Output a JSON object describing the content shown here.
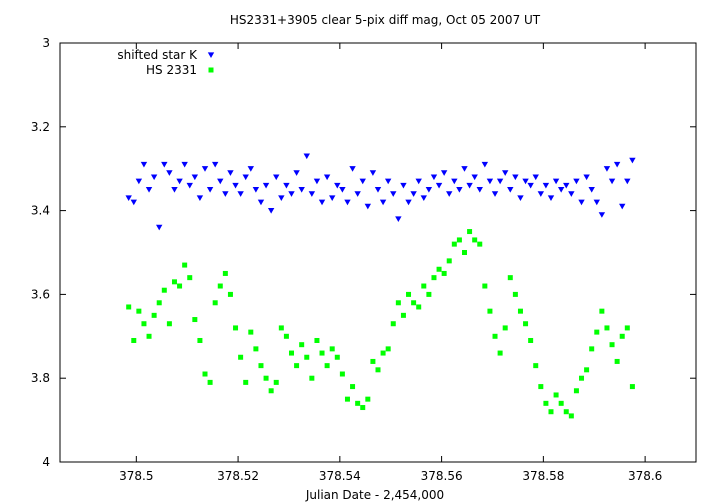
{
  "chart_data": {
    "type": "scatter",
    "title": "HS2331+3905 clear 5-pix diff mag, Oct 05 2007 UT",
    "xlabel": "Julian Date - 2,454,000",
    "ylabel": "",
    "xlim": [
      378.485,
      378.61
    ],
    "ylim": [
      4,
      3
    ],
    "y_inverted": true,
    "grid": false,
    "legend_position": "top-left",
    "x_ticks": [
      378.5,
      378.52,
      378.54,
      378.56,
      378.58,
      378.6
    ],
    "x_tick_labels": [
      "378.5",
      "378.52",
      "378.54",
      "378.56",
      "378.58",
      "378.6"
    ],
    "y_ticks": [
      3,
      3.2,
      3.4,
      3.6,
      3.8,
      4
    ],
    "y_tick_labels": [
      "3",
      "3.2",
      "3.4",
      "3.6",
      "3.8",
      "4"
    ],
    "series": [
      {
        "name": "shifted star K",
        "color": "#0000ff",
        "marker": "triangle-down",
        "points": [
          [
            378.4985,
            3.37
          ],
          [
            378.4995,
            3.38
          ],
          [
            378.5005,
            3.33
          ],
          [
            378.5015,
            3.29
          ],
          [
            378.5025,
            3.35
          ],
          [
            378.5035,
            3.32
          ],
          [
            378.5045,
            3.44
          ],
          [
            378.5055,
            3.29
          ],
          [
            378.5065,
            3.31
          ],
          [
            378.5075,
            3.35
          ],
          [
            378.5085,
            3.33
          ],
          [
            378.5095,
            3.29
          ],
          [
            378.5105,
            3.34
          ],
          [
            378.5115,
            3.32
          ],
          [
            378.5125,
            3.37
          ],
          [
            378.5135,
            3.3
          ],
          [
            378.5145,
            3.35
          ],
          [
            378.5155,
            3.29
          ],
          [
            378.5165,
            3.33
          ],
          [
            378.5175,
            3.36
          ],
          [
            378.5185,
            3.31
          ],
          [
            378.5195,
            3.34
          ],
          [
            378.5205,
            3.36
          ],
          [
            378.5215,
            3.32
          ],
          [
            378.5225,
            3.3
          ],
          [
            378.5235,
            3.35
          ],
          [
            378.5245,
            3.38
          ],
          [
            378.5255,
            3.34
          ],
          [
            378.5265,
            3.4
          ],
          [
            378.5275,
            3.32
          ],
          [
            378.5285,
            3.37
          ],
          [
            378.5295,
            3.34
          ],
          [
            378.5305,
            3.36
          ],
          [
            378.5315,
            3.31
          ],
          [
            378.5325,
            3.35
          ],
          [
            378.5335,
            3.27
          ],
          [
            378.5345,
            3.36
          ],
          [
            378.5355,
            3.33
          ],
          [
            378.5365,
            3.38
          ],
          [
            378.5375,
            3.32
          ],
          [
            378.5385,
            3.37
          ],
          [
            378.5395,
            3.34
          ],
          [
            378.5405,
            3.35
          ],
          [
            378.5415,
            3.38
          ],
          [
            378.5425,
            3.3
          ],
          [
            378.5435,
            3.36
          ],
          [
            378.5445,
            3.33
          ],
          [
            378.5455,
            3.39
          ],
          [
            378.5465,
            3.31
          ],
          [
            378.5475,
            3.35
          ],
          [
            378.5485,
            3.38
          ],
          [
            378.5495,
            3.33
          ],
          [
            378.5505,
            3.36
          ],
          [
            378.5515,
            3.42
          ],
          [
            378.5525,
            3.34
          ],
          [
            378.5535,
            3.38
          ],
          [
            378.5545,
            3.36
          ],
          [
            378.5555,
            3.33
          ],
          [
            378.5565,
            3.37
          ],
          [
            378.5575,
            3.35
          ],
          [
            378.5585,
            3.32
          ],
          [
            378.5595,
            3.34
          ],
          [
            378.5605,
            3.31
          ],
          [
            378.5615,
            3.36
          ],
          [
            378.5625,
            3.33
          ],
          [
            378.5635,
            3.35
          ],
          [
            378.5645,
            3.3
          ],
          [
            378.5655,
            3.34
          ],
          [
            378.5665,
            3.32
          ],
          [
            378.5675,
            3.35
          ],
          [
            378.5685,
            3.29
          ],
          [
            378.5695,
            3.33
          ],
          [
            378.5705,
            3.36
          ],
          [
            378.5715,
            3.33
          ],
          [
            378.5725,
            3.31
          ],
          [
            378.5735,
            3.35
          ],
          [
            378.5745,
            3.32
          ],
          [
            378.5755,
            3.37
          ],
          [
            378.5765,
            3.33
          ],
          [
            378.5775,
            3.34
          ],
          [
            378.5785,
            3.32
          ],
          [
            378.5795,
            3.36
          ],
          [
            378.5805,
            3.34
          ],
          [
            378.5815,
            3.37
          ],
          [
            378.5825,
            3.33
          ],
          [
            378.5835,
            3.35
          ],
          [
            378.5845,
            3.34
          ],
          [
            378.5855,
            3.36
          ],
          [
            378.5865,
            3.33
          ],
          [
            378.5875,
            3.38
          ],
          [
            378.5885,
            3.32
          ],
          [
            378.5895,
            3.35
          ],
          [
            378.5905,
            3.38
          ],
          [
            378.5915,
            3.41
          ],
          [
            378.5925,
            3.3
          ],
          [
            378.5935,
            3.33
          ],
          [
            378.5945,
            3.29
          ],
          [
            378.5955,
            3.39
          ],
          [
            378.5965,
            3.33
          ],
          [
            378.5975,
            3.28
          ]
        ]
      },
      {
        "name": "HS 2331",
        "color": "#00ff00",
        "marker": "square",
        "points": [
          [
            378.4985,
            3.63
          ],
          [
            378.4995,
            3.71
          ],
          [
            378.5005,
            3.64
          ],
          [
            378.5015,
            3.67
          ],
          [
            378.5025,
            3.7
          ],
          [
            378.5035,
            3.65
          ],
          [
            378.5045,
            3.62
          ],
          [
            378.5055,
            3.59
          ],
          [
            378.5065,
            3.67
          ],
          [
            378.5075,
            3.57
          ],
          [
            378.5085,
            3.58
          ],
          [
            378.5095,
            3.53
          ],
          [
            378.5105,
            3.56
          ],
          [
            378.5115,
            3.66
          ],
          [
            378.5125,
            3.71
          ],
          [
            378.5135,
            3.79
          ],
          [
            378.5145,
            3.81
          ],
          [
            378.5155,
            3.62
          ],
          [
            378.5165,
            3.58
          ],
          [
            378.5175,
            3.55
          ],
          [
            378.5185,
            3.6
          ],
          [
            378.5195,
            3.68
          ],
          [
            378.5205,
            3.75
          ],
          [
            378.5215,
            3.81
          ],
          [
            378.5225,
            3.69
          ],
          [
            378.5235,
            3.73
          ],
          [
            378.5245,
            3.77
          ],
          [
            378.5255,
            3.8
          ],
          [
            378.5265,
            3.83
          ],
          [
            378.5275,
            3.81
          ],
          [
            378.5285,
            3.68
          ],
          [
            378.5295,
            3.7
          ],
          [
            378.5305,
            3.74
          ],
          [
            378.5315,
            3.77
          ],
          [
            378.5325,
            3.72
          ],
          [
            378.5335,
            3.75
          ],
          [
            378.5345,
            3.8
          ],
          [
            378.5355,
            3.71
          ],
          [
            378.5365,
            3.74
          ],
          [
            378.5375,
            3.77
          ],
          [
            378.5385,
            3.73
          ],
          [
            378.5395,
            3.75
          ],
          [
            378.5405,
            3.79
          ],
          [
            378.5415,
            3.85
          ],
          [
            378.5425,
            3.82
          ],
          [
            378.5435,
            3.86
          ],
          [
            378.5445,
            3.87
          ],
          [
            378.5455,
            3.85
          ],
          [
            378.5465,
            3.76
          ],
          [
            378.5475,
            3.78
          ],
          [
            378.5485,
            3.74
          ],
          [
            378.5495,
            3.73
          ],
          [
            378.5505,
            3.67
          ],
          [
            378.5515,
            3.62
          ],
          [
            378.5525,
            3.65
          ],
          [
            378.5535,
            3.6
          ],
          [
            378.5545,
            3.62
          ],
          [
            378.5555,
            3.63
          ],
          [
            378.5565,
            3.58
          ],
          [
            378.5575,
            3.6
          ],
          [
            378.5585,
            3.56
          ],
          [
            378.5595,
            3.54
          ],
          [
            378.5605,
            3.55
          ],
          [
            378.5615,
            3.52
          ],
          [
            378.5625,
            3.48
          ],
          [
            378.5635,
            3.47
          ],
          [
            378.5645,
            3.5
          ],
          [
            378.5655,
            3.45
          ],
          [
            378.5665,
            3.47
          ],
          [
            378.5675,
            3.48
          ],
          [
            378.5685,
            3.58
          ],
          [
            378.5695,
            3.64
          ],
          [
            378.5705,
            3.7
          ],
          [
            378.5715,
            3.74
          ],
          [
            378.5725,
            3.68
          ],
          [
            378.5735,
            3.56
          ],
          [
            378.5745,
            3.6
          ],
          [
            378.5755,
            3.64
          ],
          [
            378.5765,
            3.67
          ],
          [
            378.5775,
            3.71
          ],
          [
            378.5785,
            3.77
          ],
          [
            378.5795,
            3.82
          ],
          [
            378.5805,
            3.86
          ],
          [
            378.5815,
            3.88
          ],
          [
            378.5825,
            3.84
          ],
          [
            378.5835,
            3.86
          ],
          [
            378.5845,
            3.88
          ],
          [
            378.5855,
            3.89
          ],
          [
            378.5865,
            3.83
          ],
          [
            378.5875,
            3.8
          ],
          [
            378.5885,
            3.78
          ],
          [
            378.5895,
            3.73
          ],
          [
            378.5905,
            3.69
          ],
          [
            378.5915,
            3.64
          ],
          [
            378.5925,
            3.68
          ],
          [
            378.5935,
            3.72
          ],
          [
            378.5945,
            3.76
          ],
          [
            378.5955,
            3.7
          ],
          [
            378.5965,
            3.68
          ],
          [
            378.5975,
            3.82
          ]
        ]
      }
    ]
  }
}
